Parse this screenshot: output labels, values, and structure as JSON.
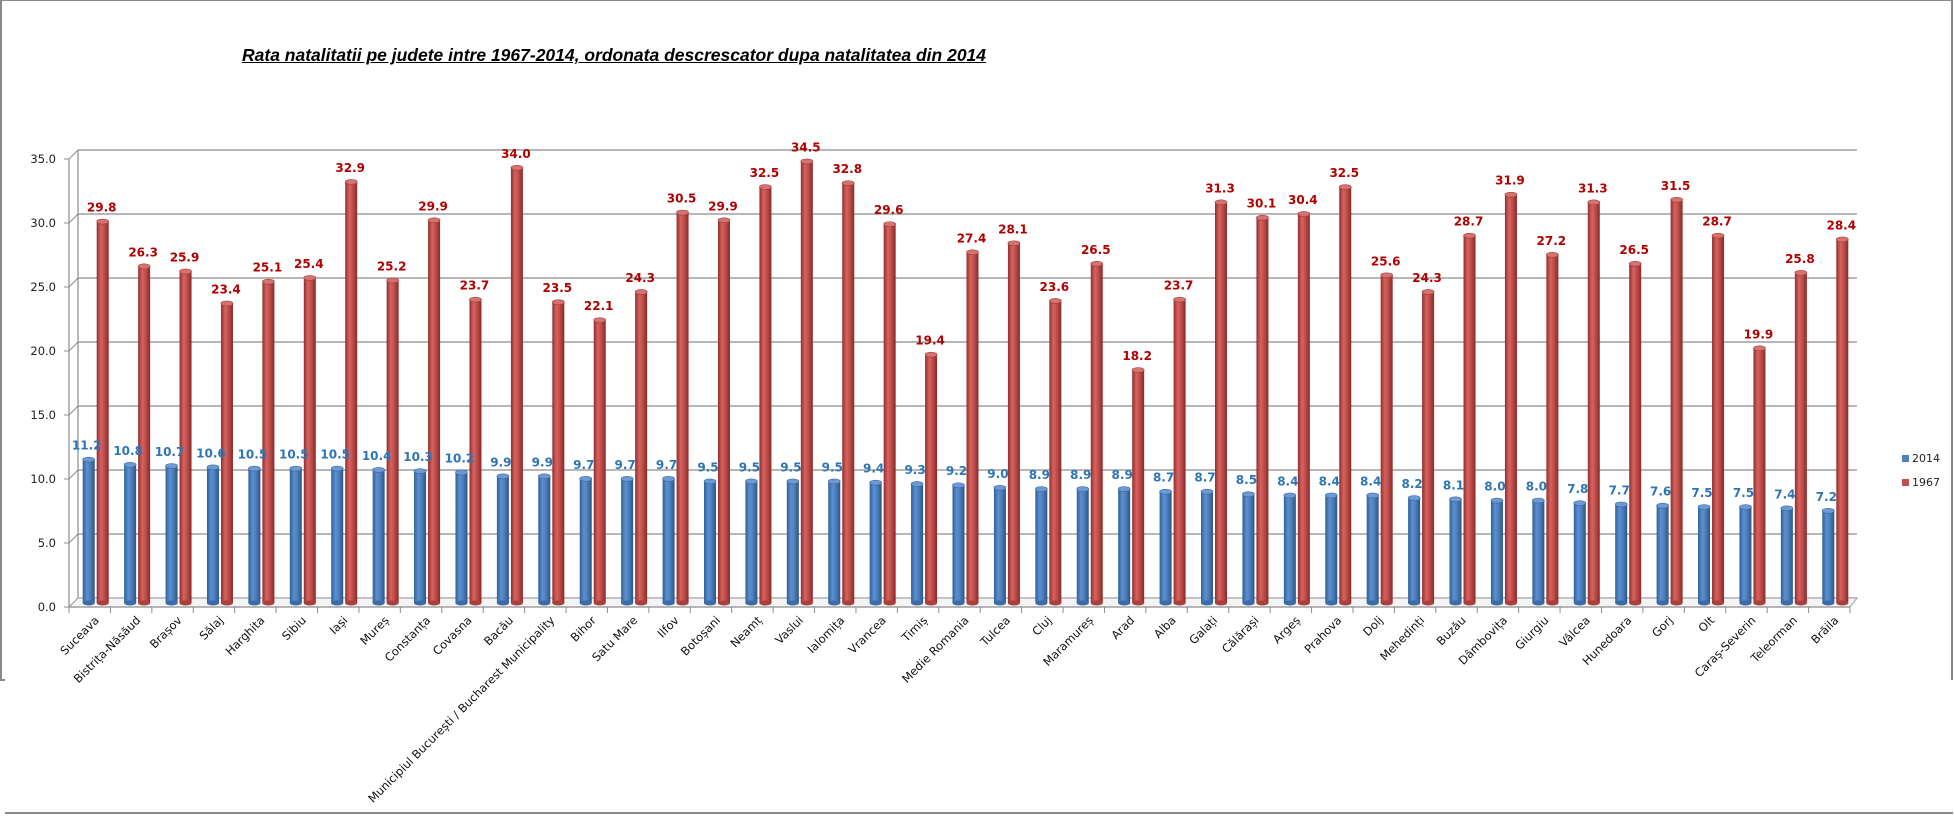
{
  "chart_data": {
    "type": "bar",
    "title": "Rata natalitatii pe judete intre 1967-2014, ordonata descrescator dupa natalitatea din 2014",
    "xlabel": "",
    "ylabel": "",
    "ylim": [
      0,
      35
    ],
    "yticks": [
      "0.0",
      "5.0",
      "10.0",
      "15.0",
      "20.0",
      "25.0",
      "30.0",
      "35.0"
    ],
    "grid": true,
    "legend_position": "right",
    "categories": [
      "Suceava",
      "Bistrița-Năsăud",
      "Brașov",
      "Sălaj",
      "Harghita",
      "Sibiu",
      "Iași",
      "Mureș",
      "Constanța",
      "Covasna",
      "Bacău",
      "Municipiul București / Bucharest Municipality",
      "Bihor",
      "Satu Mare",
      "Ilfov",
      "Botoșani",
      "Neamț",
      "Vaslui",
      "Ialomița",
      "Vrancea",
      "Timiș",
      "Medie Romania",
      "Tulcea",
      "Cluj",
      "Maramureș",
      "Arad",
      "Alba",
      "Galați",
      "Călărași",
      "Argeș",
      "Prahova",
      "Dolj",
      "Mehedinți",
      "Buzău",
      "Dâmbovița",
      "Giurgiu",
      "Vâlcea",
      "Hunedoara",
      "Gorj",
      "Olt",
      "Caraș-Severin",
      "Teleorman",
      "Brăila"
    ],
    "series": [
      {
        "name": "2014",
        "color": "#4f81bd",
        "label_color": "#2e75b6",
        "values": [
          11.2,
          10.8,
          10.7,
          10.6,
          10.5,
          10.5,
          10.5,
          10.4,
          10.3,
          10.2,
          9.9,
          9.9,
          9.7,
          9.7,
          9.7,
          9.5,
          9.5,
          9.5,
          9.5,
          9.4,
          9.3,
          9.2,
          9.0,
          8.9,
          8.9,
          8.9,
          8.7,
          8.7,
          8.5,
          8.4,
          8.4,
          8.4,
          8.2,
          8.1,
          8.0,
          8.0,
          7.8,
          7.7,
          7.6,
          7.5,
          7.5,
          7.4,
          7.2
        ]
      },
      {
        "name": "1967",
        "color": "#c0504d",
        "label_color": "#b00000",
        "values": [
          29.8,
          26.3,
          25.9,
          23.4,
          25.1,
          25.4,
          32.9,
          25.2,
          29.9,
          23.7,
          34.0,
          23.5,
          22.1,
          24.3,
          30.5,
          29.9,
          32.5,
          34.5,
          32.8,
          29.6,
          19.4,
          27.4,
          28.1,
          23.6,
          26.5,
          18.2,
          23.7,
          31.3,
          30.1,
          30.4,
          32.5,
          25.6,
          24.3,
          28.7,
          31.9,
          27.2,
          31.3,
          26.5,
          31.5,
          28.7,
          19.9,
          25.8,
          28.4
        ]
      }
    ]
  }
}
